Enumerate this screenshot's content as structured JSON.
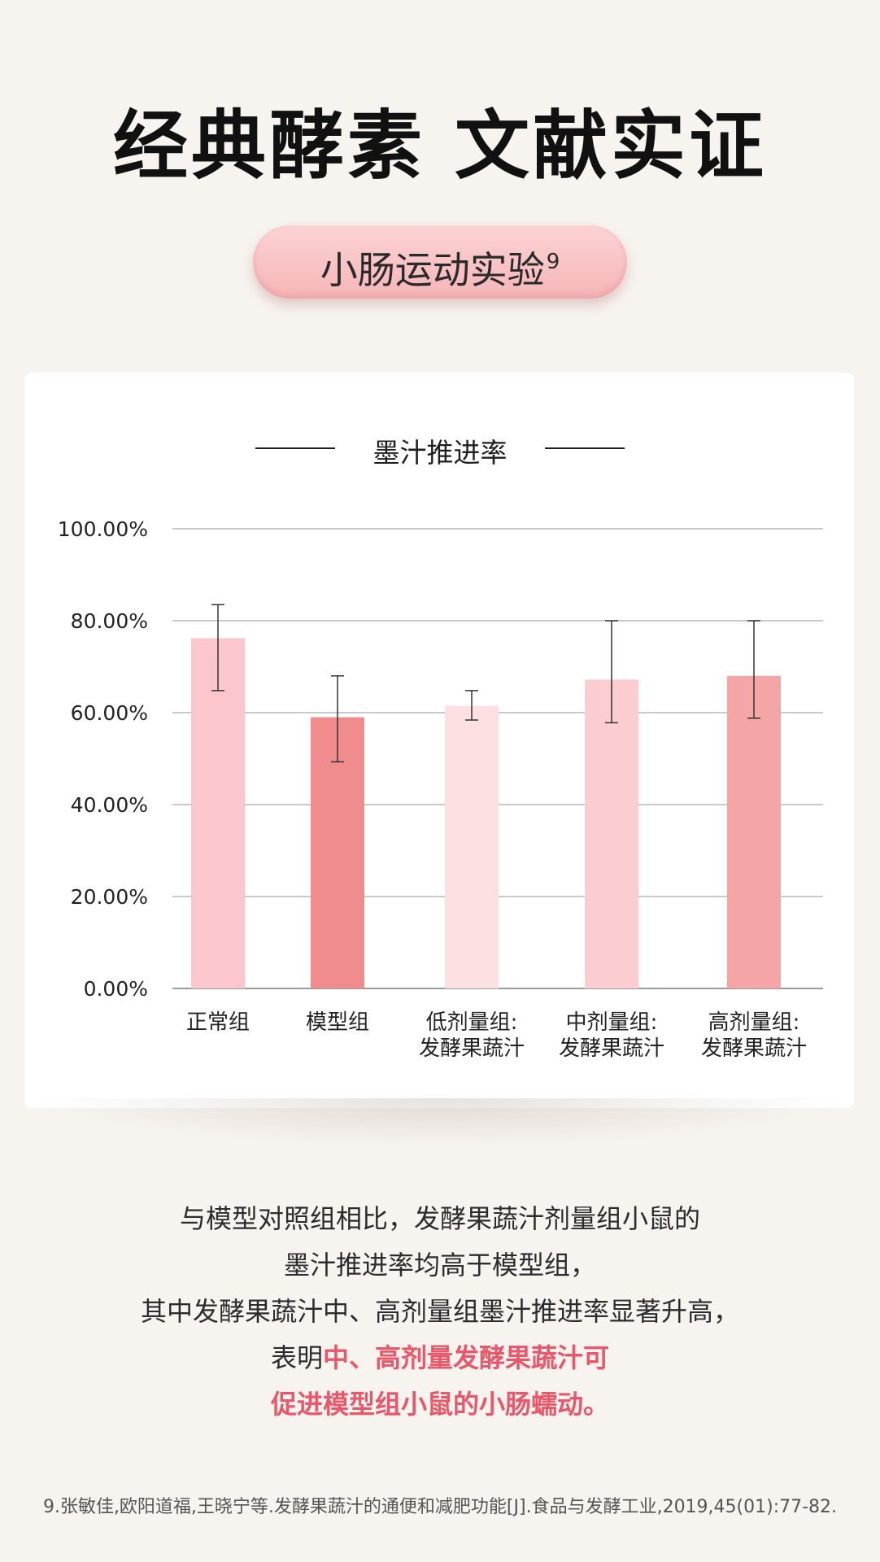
{
  "headline": "经典酵素 文献实证",
  "pill": {
    "label": "小肠运动实验",
    "superscript": "9"
  },
  "chart_data": {
    "type": "bar",
    "title": "墨汁推进率",
    "categories": [
      "正常组",
      "模型组",
      "低剂量组:\n发酵果蔬汁",
      "中剂量组:\n发酵果蔬汁",
      "高剂量组:\n发酵果蔬汁"
    ],
    "values": [
      76.2,
      59.0,
      61.5,
      67.2,
      68.0
    ],
    "error_low": [
      64.8,
      49.3,
      58.4,
      57.8,
      58.8
    ],
    "error_high": [
      83.5,
      68.0,
      64.8,
      80.0,
      80.0
    ],
    "ylim": [
      0,
      100
    ],
    "yticks": [
      "0.00%",
      "20.00%",
      "40.00%",
      "60.00%",
      "80.00%",
      "100.00%"
    ],
    "ytick_values": [
      0,
      20,
      40,
      60,
      80,
      100
    ],
    "bar_colors": [
      "#fbc7cc",
      "#f08c8c",
      "#fde0e2",
      "#fccdd0",
      "#f4a5a5"
    ],
    "grid": true
  },
  "description": {
    "line1": "与模型对照组相比，发酵果蔬汁剂量组小鼠的",
    "line2": "墨汁推进率均高于模型组，",
    "line3": "其中发酵果蔬汁中、高剂量组墨汁推进率显著升高，",
    "line4_prefix": "表明",
    "line4_highlight": "中、高剂量发酵果蔬汁可",
    "line5_highlight": "促进模型组小鼠的小肠蠕动。"
  },
  "footnote": "9.张敏佳,欧阳道福,王晓宁等.发酵果蔬汁的通便和减肥功能[J].食品与发酵工业,2019,45(01):77-82.",
  "colors": {
    "accent": "#e8586a",
    "pill": "#f6b5b8",
    "background": "#f7f3ef"
  }
}
